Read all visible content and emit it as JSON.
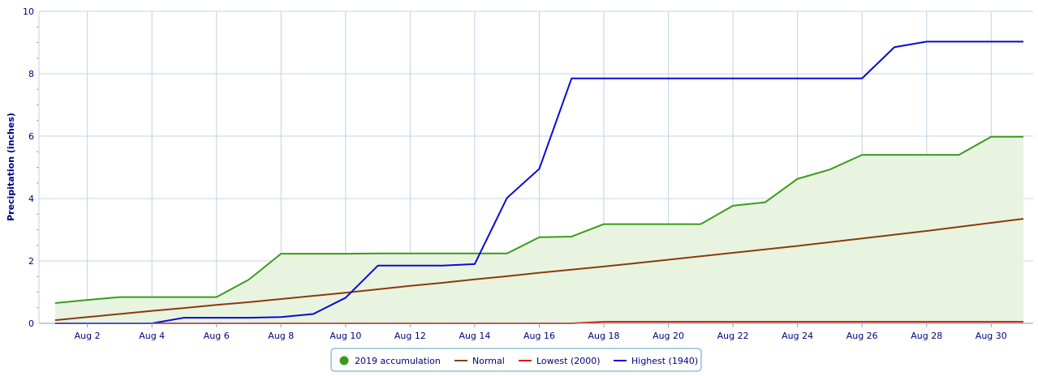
{
  "chart_data": {
    "type": "line",
    "title": "",
    "xlabel": "",
    "ylabel": "Precipitation (inches)",
    "ylim": [
      0,
      10
    ],
    "xlim": [
      0.5,
      31.3
    ],
    "y_ticks": [
      "0",
      "2",
      "4",
      "6",
      "8",
      "10"
    ],
    "x_ticks": [
      {
        "day": 2,
        "label": "Aug 2"
      },
      {
        "day": 4,
        "label": "Aug 4"
      },
      {
        "day": 6,
        "label": "Aug 6"
      },
      {
        "day": 8,
        "label": "Aug 8"
      },
      {
        "day": 10,
        "label": "Aug 10"
      },
      {
        "day": 12,
        "label": "Aug 12"
      },
      {
        "day": 14,
        "label": "Aug 14"
      },
      {
        "day": 16,
        "label": "Aug 16"
      },
      {
        "day": 18,
        "label": "Aug 18"
      },
      {
        "day": 20,
        "label": "Aug 20"
      },
      {
        "day": 22,
        "label": "Aug 22"
      },
      {
        "day": 24,
        "label": "Aug 24"
      },
      {
        "day": 26,
        "label": "Aug 26"
      },
      {
        "day": 28,
        "label": "Aug 28"
      },
      {
        "day": 30,
        "label": "Aug 30"
      }
    ],
    "grid": true,
    "legend_position": "bottom-center",
    "x": [
      1,
      2,
      3,
      4,
      5,
      6,
      7,
      8,
      9,
      10,
      11,
      12,
      13,
      14,
      15,
      16,
      17,
      18,
      19,
      20,
      21,
      22,
      23,
      24,
      25,
      26,
      27,
      28,
      29,
      30,
      31
    ],
    "series": [
      {
        "name": "2019 accumulation",
        "color": "#3c9a1c",
        "fill": "#e8f4e0",
        "style": "area",
        "legend_marker": "circle",
        "values": [
          0.65,
          0.75,
          0.84,
          0.84,
          0.84,
          0.84,
          1.4,
          2.23,
          2.23,
          2.23,
          2.24,
          2.24,
          2.24,
          2.24,
          2.24,
          2.76,
          2.78,
          3.18,
          3.18,
          3.18,
          3.18,
          3.77,
          3.88,
          4.63,
          4.93,
          5.4,
          5.4,
          5.4,
          5.4,
          5.98,
          5.98
        ]
      },
      {
        "name": "Normal",
        "color": "#8b3a0e",
        "style": "line",
        "legend_marker": "line",
        "values": [
          0.1,
          0.2,
          0.3,
          0.4,
          0.49,
          0.59,
          0.68,
          0.78,
          0.88,
          0.98,
          1.09,
          1.2,
          1.3,
          1.41,
          1.51,
          1.62,
          1.72,
          1.82,
          1.93,
          2.04,
          2.15,
          2.26,
          2.37,
          2.48,
          2.6,
          2.72,
          2.84,
          2.96,
          3.09,
          3.22,
          3.35
        ]
      },
      {
        "name": "Lowest (2000)",
        "color": "#e0180c",
        "style": "line",
        "legend_marker": "line",
        "values": [
          0,
          0,
          0,
          0,
          0,
          0,
          0,
          0,
          0,
          0,
          0,
          0,
          0,
          0,
          0,
          0,
          0,
          0.05,
          0.05,
          0.05,
          0.05,
          0.05,
          0.05,
          0.05,
          0.05,
          0.05,
          0.05,
          0.05,
          0.05,
          0.05,
          0.05
        ]
      },
      {
        "name": "Highest (1940)",
        "color": "#0a0ad6",
        "style": "line",
        "legend_marker": "line",
        "values": [
          0,
          0,
          0,
          0,
          0.18,
          0.18,
          0.18,
          0.2,
          0.3,
          0.82,
          1.85,
          1.85,
          1.85,
          1.9,
          4.02,
          4.95,
          7.85,
          7.85,
          7.85,
          7.85,
          7.85,
          7.85,
          7.85,
          7.85,
          7.85,
          7.85,
          8.85,
          9.03,
          9.03,
          9.03,
          9.03
        ]
      }
    ]
  }
}
